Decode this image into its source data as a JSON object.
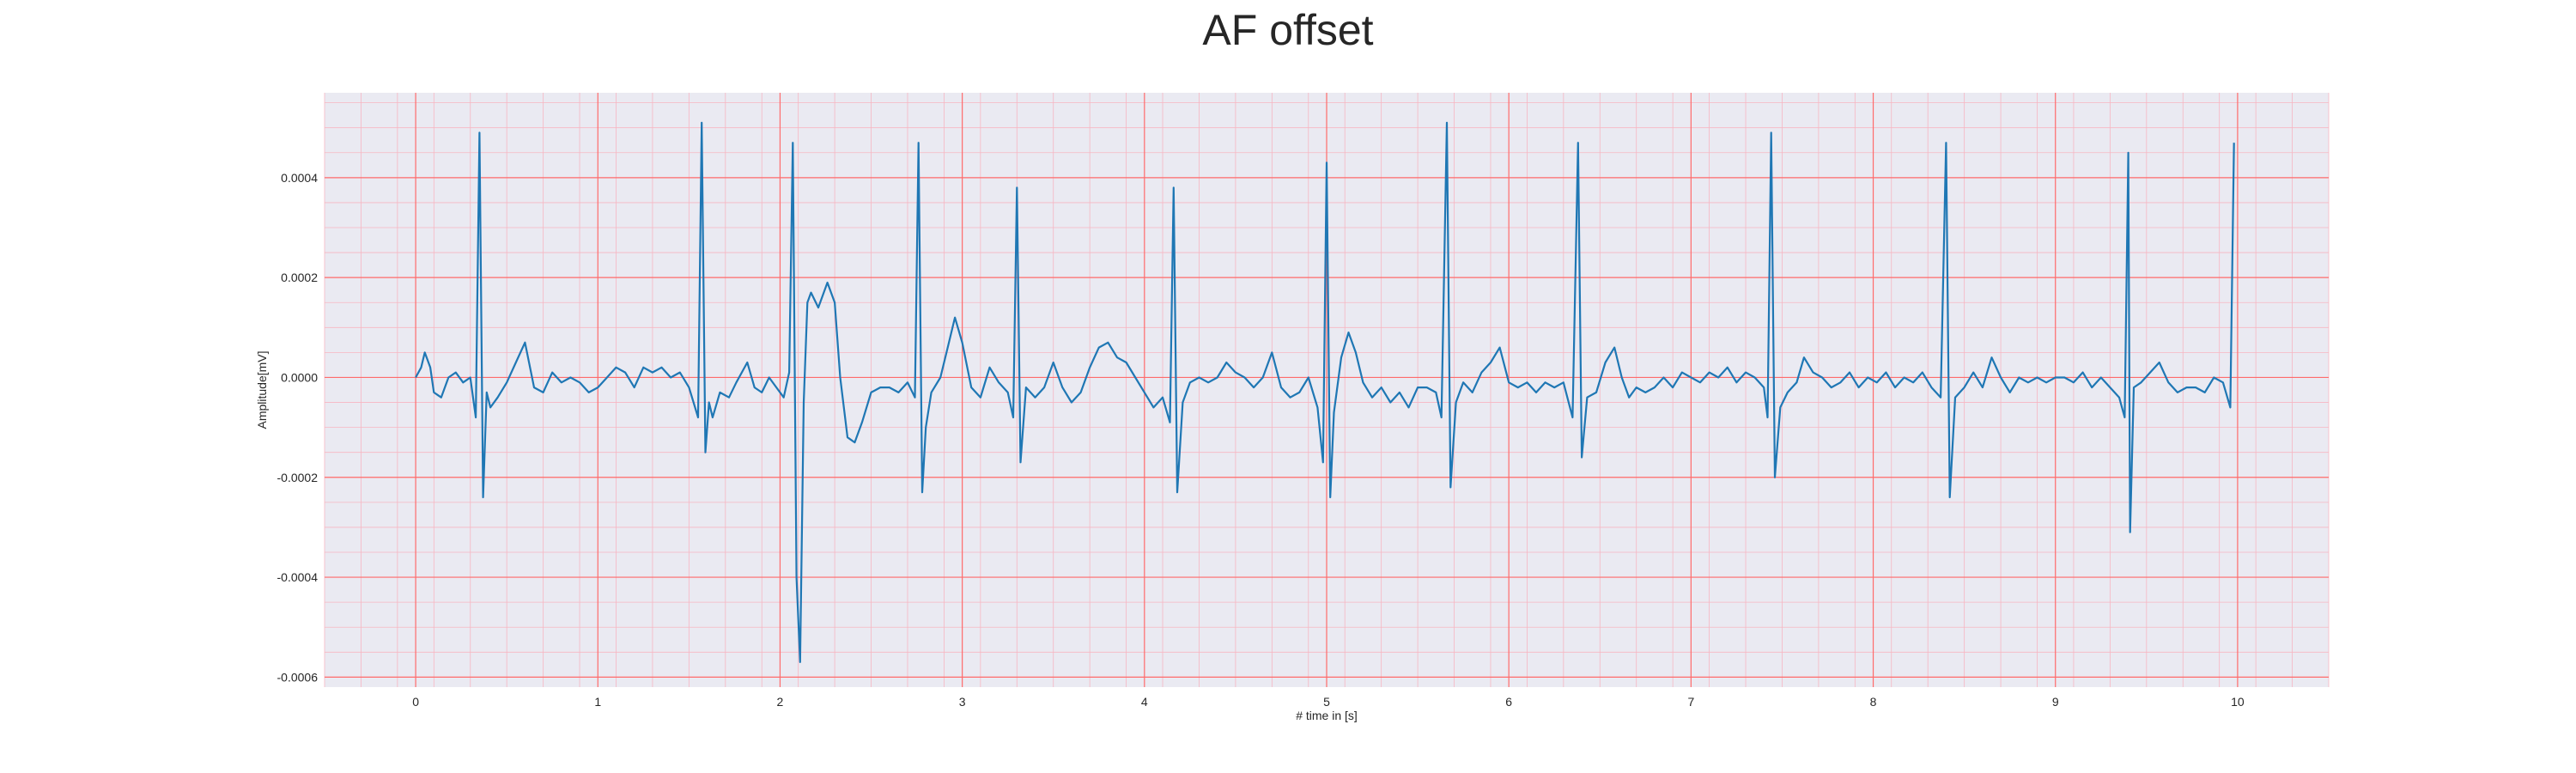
{
  "chart_data": {
    "type": "line",
    "title": "AF offset",
    "xlabel": "# time in [s]",
    "ylabel": "Amplitude[mV]",
    "xlim": [
      -0.5,
      10.5
    ],
    "ylim": [
      -0.00062,
      0.00057
    ],
    "xticks": [
      0,
      1,
      2,
      3,
      4,
      5,
      6,
      7,
      8,
      9,
      10
    ],
    "xtick_labels": [
      "0",
      "1",
      "2",
      "3",
      "4",
      "5",
      "6",
      "7",
      "8",
      "9",
      "10"
    ],
    "yticks": [
      0.0004,
      0.0002,
      0.0,
      -0.0002,
      -0.0004,
      -0.0006
    ],
    "ytick_labels": [
      "0.0004",
      "0.0002",
      "0.0000",
      "-0.0002",
      "-0.0004",
      "-0.0006"
    ],
    "grid": true,
    "minor_grid": true,
    "colors": {
      "background": "#eaeaf2",
      "major_grid": "#ff6b6b",
      "minor_grid": "#f7b6c2",
      "line": "#1f77b4"
    },
    "series": [
      {
        "values": [
          [
            0.0,
            0.0
          ],
          [
            0.03,
            2e-05
          ],
          [
            0.05,
            5e-05
          ],
          [
            0.08,
            2e-05
          ],
          [
            0.1,
            -3e-05
          ],
          [
            0.14,
            -4e-05
          ],
          [
            0.18,
            0.0
          ],
          [
            0.22,
            1e-05
          ],
          [
            0.26,
            -1e-05
          ],
          [
            0.3,
            0.0
          ],
          [
            0.33,
            -8e-05
          ],
          [
            0.35,
            0.00049
          ],
          [
            0.37,
            -0.00024
          ],
          [
            0.39,
            -3e-05
          ],
          [
            0.41,
            -6e-05
          ],
          [
            0.45,
            -4e-05
          ],
          [
            0.5,
            -1e-05
          ],
          [
            0.55,
            3e-05
          ],
          [
            0.6,
            7e-05
          ],
          [
            0.65,
            -2e-05
          ],
          [
            0.7,
            -3e-05
          ],
          [
            0.75,
            1e-05
          ],
          [
            0.8,
            -1e-05
          ],
          [
            0.85,
            0.0
          ],
          [
            0.9,
            -1e-05
          ],
          [
            0.95,
            -3e-05
          ],
          [
            1.0,
            -2e-05
          ],
          [
            1.05,
            0.0
          ],
          [
            1.1,
            2e-05
          ],
          [
            1.15,
            1e-05
          ],
          [
            1.2,
            -2e-05
          ],
          [
            1.25,
            2e-05
          ],
          [
            1.3,
            1e-05
          ],
          [
            1.35,
            2e-05
          ],
          [
            1.4,
            0.0
          ],
          [
            1.45,
            1e-05
          ],
          [
            1.5,
            -2e-05
          ],
          [
            1.55,
            -8e-05
          ],
          [
            1.57,
            0.00051
          ],
          [
            1.59,
            -0.00015
          ],
          [
            1.61,
            -5e-05
          ],
          [
            1.63,
            -8e-05
          ],
          [
            1.67,
            -3e-05
          ],
          [
            1.72,
            -4e-05
          ],
          [
            1.76,
            -1e-05
          ],
          [
            1.82,
            3e-05
          ],
          [
            1.86,
            -2e-05
          ],
          [
            1.9,
            -3e-05
          ],
          [
            1.94,
            0.0
          ],
          [
            1.98,
            -2e-05
          ],
          [
            2.02,
            -4e-05
          ],
          [
            2.05,
            1e-05
          ],
          [
            2.07,
            0.00047
          ],
          [
            2.09,
            -0.0004
          ],
          [
            2.11,
            -0.00057
          ],
          [
            2.13,
            -5e-05
          ],
          [
            2.15,
            0.00015
          ],
          [
            2.17,
            0.00017
          ],
          [
            2.21,
            0.00014
          ],
          [
            2.26,
            0.00019
          ],
          [
            2.3,
            0.00015
          ],
          [
            2.33,
            0.0
          ],
          [
            2.37,
            -0.00012
          ],
          [
            2.41,
            -0.00013
          ],
          [
            2.45,
            -9e-05
          ],
          [
            2.5,
            -3e-05
          ],
          [
            2.55,
            -2e-05
          ],
          [
            2.6,
            -2e-05
          ],
          [
            2.65,
            -3e-05
          ],
          [
            2.7,
            -1e-05
          ],
          [
            2.74,
            -4e-05
          ],
          [
            2.76,
            0.00047
          ],
          [
            2.78,
            -0.00023
          ],
          [
            2.8,
            -0.0001
          ],
          [
            2.83,
            -3e-05
          ],
          [
            2.88,
            0.0
          ],
          [
            2.92,
            6e-05
          ],
          [
            2.96,
            0.00012
          ],
          [
            3.0,
            7e-05
          ],
          [
            3.05,
            -2e-05
          ],
          [
            3.1,
            -4e-05
          ],
          [
            3.15,
            2e-05
          ],
          [
            3.2,
            -1e-05
          ],
          [
            3.25,
            -3e-05
          ],
          [
            3.28,
            -8e-05
          ],
          [
            3.3,
            0.00038
          ],
          [
            3.32,
            -0.00017
          ],
          [
            3.35,
            -2e-05
          ],
          [
            3.4,
            -4e-05
          ],
          [
            3.45,
            -2e-05
          ],
          [
            3.5,
            3e-05
          ],
          [
            3.55,
            -2e-05
          ],
          [
            3.6,
            -5e-05
          ],
          [
            3.65,
            -3e-05
          ],
          [
            3.7,
            2e-05
          ],
          [
            3.75,
            6e-05
          ],
          [
            3.8,
            7e-05
          ],
          [
            3.85,
            4e-05
          ],
          [
            3.9,
            3e-05
          ],
          [
            3.95,
            0.0
          ],
          [
            4.0,
            -3e-05
          ],
          [
            4.05,
            -6e-05
          ],
          [
            4.1,
            -4e-05
          ],
          [
            4.14,
            -9e-05
          ],
          [
            4.16,
            0.00038
          ],
          [
            4.18,
            -0.00023
          ],
          [
            4.21,
            -5e-05
          ],
          [
            4.25,
            -1e-05
          ],
          [
            4.3,
            0.0
          ],
          [
            4.35,
            -1e-05
          ],
          [
            4.4,
            0.0
          ],
          [
            4.45,
            3e-05
          ],
          [
            4.5,
            1e-05
          ],
          [
            4.55,
            0.0
          ],
          [
            4.6,
            -2e-05
          ],
          [
            4.65,
            0.0
          ],
          [
            4.7,
            5e-05
          ],
          [
            4.75,
            -2e-05
          ],
          [
            4.8,
            -4e-05
          ],
          [
            4.85,
            -3e-05
          ],
          [
            4.9,
            0.0
          ],
          [
            4.95,
            -6e-05
          ],
          [
            4.98,
            -0.00017
          ],
          [
            5.0,
            0.00043
          ],
          [
            5.02,
            -0.00024
          ],
          [
            5.04,
            -7e-05
          ],
          [
            5.08,
            4e-05
          ],
          [
            5.12,
            9e-05
          ],
          [
            5.16,
            5e-05
          ],
          [
            5.2,
            -1e-05
          ],
          [
            5.25,
            -4e-05
          ],
          [
            5.3,
            -2e-05
          ],
          [
            5.35,
            -5e-05
          ],
          [
            5.4,
            -3e-05
          ],
          [
            5.45,
            -6e-05
          ],
          [
            5.5,
            -2e-05
          ],
          [
            5.55,
            -2e-05
          ],
          [
            5.6,
            -3e-05
          ],
          [
            5.63,
            -8e-05
          ],
          [
            5.66,
            0.00051
          ],
          [
            5.68,
            -0.00022
          ],
          [
            5.71,
            -5e-05
          ],
          [
            5.75,
            -1e-05
          ],
          [
            5.8,
            -3e-05
          ],
          [
            5.85,
            1e-05
          ],
          [
            5.9,
            3e-05
          ],
          [
            5.95,
            6e-05
          ],
          [
            6.0,
            -1e-05
          ],
          [
            6.05,
            -2e-05
          ],
          [
            6.1,
            -1e-05
          ],
          [
            6.15,
            -3e-05
          ],
          [
            6.2,
            -1e-05
          ],
          [
            6.25,
            -2e-05
          ],
          [
            6.3,
            -1e-05
          ],
          [
            6.35,
            -8e-05
          ],
          [
            6.38,
            0.00047
          ],
          [
            6.4,
            -0.00016
          ],
          [
            6.43,
            -4e-05
          ],
          [
            6.48,
            -3e-05
          ],
          [
            6.53,
            3e-05
          ],
          [
            6.58,
            6e-05
          ],
          [
            6.62,
            0.0
          ],
          [
            6.66,
            -4e-05
          ],
          [
            6.7,
            -2e-05
          ],
          [
            6.75,
            -3e-05
          ],
          [
            6.8,
            -2e-05
          ],
          [
            6.85,
            0.0
          ],
          [
            6.9,
            -2e-05
          ],
          [
            6.95,
            1e-05
          ],
          [
            7.0,
            0.0
          ],
          [
            7.05,
            -1e-05
          ],
          [
            7.1,
            1e-05
          ],
          [
            7.15,
            0.0
          ],
          [
            7.2,
            2e-05
          ],
          [
            7.25,
            -1e-05
          ],
          [
            7.3,
            1e-05
          ],
          [
            7.35,
            0.0
          ],
          [
            7.4,
            -2e-05
          ],
          [
            7.42,
            -8e-05
          ],
          [
            7.44,
            0.00049
          ],
          [
            7.46,
            -0.0002
          ],
          [
            7.49,
            -6e-05
          ],
          [
            7.53,
            -3e-05
          ],
          [
            7.58,
            -1e-05
          ],
          [
            7.62,
            4e-05
          ],
          [
            7.67,
            1e-05
          ],
          [
            7.72,
            0.0
          ],
          [
            7.77,
            -2e-05
          ],
          [
            7.82,
            -1e-05
          ],
          [
            7.87,
            1e-05
          ],
          [
            7.92,
            -2e-05
          ],
          [
            7.97,
            0.0
          ],
          [
            8.02,
            -1e-05
          ],
          [
            8.07,
            1e-05
          ],
          [
            8.12,
            -2e-05
          ],
          [
            8.17,
            0.0
          ],
          [
            8.22,
            -1e-05
          ],
          [
            8.27,
            1e-05
          ],
          [
            8.32,
            -2e-05
          ],
          [
            8.37,
            -4e-05
          ],
          [
            8.4,
            0.00047
          ],
          [
            8.42,
            -0.00024
          ],
          [
            8.45,
            -4e-05
          ],
          [
            8.5,
            -2e-05
          ],
          [
            8.55,
            1e-05
          ],
          [
            8.6,
            -2e-05
          ],
          [
            8.65,
            4e-05
          ],
          [
            8.7,
            0.0
          ],
          [
            8.75,
            -3e-05
          ],
          [
            8.8,
            0.0
          ],
          [
            8.85,
            -1e-05
          ],
          [
            8.9,
            0.0
          ],
          [
            8.95,
            -1e-05
          ],
          [
            9.0,
            0.0
          ],
          [
            9.05,
            0.0
          ],
          [
            9.1,
            -1e-05
          ],
          [
            9.15,
            1e-05
          ],
          [
            9.2,
            -2e-05
          ],
          [
            9.25,
            0.0
          ],
          [
            9.3,
            -2e-05
          ],
          [
            9.35,
            -4e-05
          ],
          [
            9.38,
            -8e-05
          ],
          [
            9.4,
            0.00045
          ],
          [
            9.41,
            -0.00031
          ],
          [
            9.43,
            -2e-05
          ],
          [
            9.47,
            -1e-05
          ],
          [
            9.52,
            1e-05
          ],
          [
            9.57,
            3e-05
          ],
          [
            9.62,
            -1e-05
          ],
          [
            9.67,
            -3e-05
          ],
          [
            9.72,
            -2e-05
          ],
          [
            9.77,
            -2e-05
          ],
          [
            9.82,
            -3e-05
          ],
          [
            9.87,
            0.0
          ],
          [
            9.92,
            -1e-05
          ],
          [
            9.96,
            -6e-05
          ],
          [
            9.98,
            0.00047
          ]
        ]
      }
    ]
  }
}
